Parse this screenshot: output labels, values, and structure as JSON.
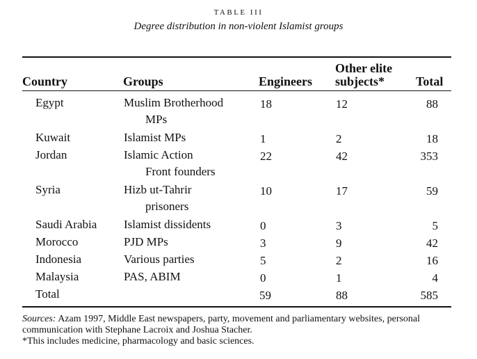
{
  "caption": {
    "label": "TABLE III",
    "title": "Degree distribution in non-violent Islamist groups"
  },
  "headers": {
    "country": "Country",
    "groups": "Groups",
    "engineers": "Engineers",
    "other_line1": "Other elite",
    "other_line2": "subjects*",
    "total": "Total"
  },
  "rows": [
    {
      "country": "Egypt",
      "group1": "Muslim Brotherhood",
      "group2": "MPs",
      "engineers": "18",
      "other": "12",
      "total": "88"
    },
    {
      "country": "Kuwait",
      "group1": "Islamist MPs",
      "group2": "",
      "engineers": "1",
      "other": "2",
      "total": "18"
    },
    {
      "country": "Jordan",
      "group1": "Islamic Action",
      "group2": "Front founders",
      "engineers": "22",
      "other": "42",
      "total": "353"
    },
    {
      "country": "Syria",
      "group1": "Hizb ut-Tahrir",
      "group2": "prisoners",
      "engineers": "10",
      "other": "17",
      "total": "59"
    },
    {
      "country": "Saudi Arabia",
      "group1": "Islamist dissidents",
      "group2": "",
      "engineers": "0",
      "other": "3",
      "total": "5"
    },
    {
      "country": "Morocco",
      "group1": "PJD MPs",
      "group2": "",
      "engineers": "3",
      "other": "9",
      "total": "42"
    },
    {
      "country": "Indonesia",
      "group1": "Various parties",
      "group2": "",
      "engineers": "5",
      "other": "2",
      "total": "16"
    },
    {
      "country": "Malaysia",
      "group1": "PAS, ABIM",
      "group2": "",
      "engineers": "0",
      "other": "1",
      "total": "4"
    }
  ],
  "total_row": {
    "country": "Total",
    "engineers": "59",
    "other": "88",
    "total": "585"
  },
  "notes": {
    "sources_label": "Sources:",
    "sources_text": " Azam 1997, Middle East newspapers, party, movement and parliamentary websites, personal communication with Stephane Lacroix and Joshua Stacher.",
    "footnote": "*This includes medicine, pharmacology and basic sciences."
  }
}
